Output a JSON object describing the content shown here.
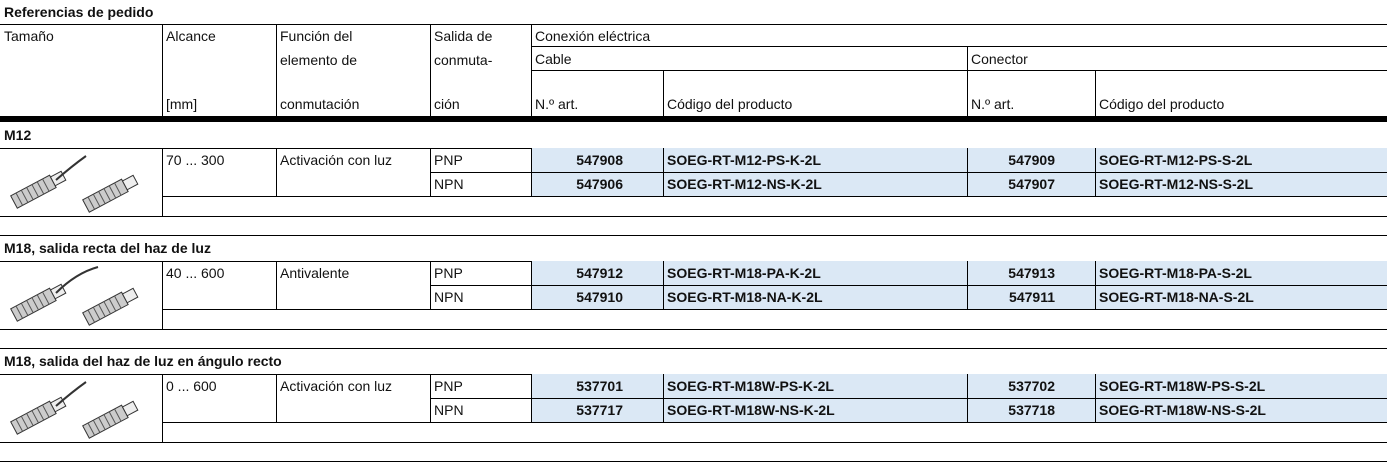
{
  "header": {
    "title": "Referencias de pedido"
  },
  "table": {
    "columns": {
      "size": "Tamaño",
      "range": [
        "Alcance",
        "[mm]"
      ],
      "function": [
        "Función del",
        "elemento de",
        "conmutación"
      ],
      "output": [
        "Salida de",
        "conmuta-",
        "ción"
      ],
      "electrical": "Conexión eléctrica",
      "cable": "Cable",
      "connector": "Conector",
      "cable_columns": [
        "N.º art.",
        "Código del producto"
      ],
      "connector_columns": [
        "N.º art.",
        "Código del producto"
      ]
    },
    "sections": [
      {
        "title": "M12",
        "range": "70 ... 300",
        "function": "Activación con luz",
        "rows": [
          {
            "output": "PNP",
            "cable_part": "547908",
            "cable_code": "SOEG-RT-M12-PS-K-2L",
            "connector_part": "547909",
            "connector_code": "SOEG-RT-M12-PS-S-2L"
          },
          {
            "output": "NPN",
            "cable_part": "547906",
            "cable_code": "SOEG-RT-M12-NS-K-2L",
            "connector_part": "547907",
            "connector_code": "SOEG-RT-M12-NS-S-2L"
          }
        ]
      },
      {
        "title": "M18, salida recta del haz de luz",
        "range": "40 ... 600",
        "function": "Antivalente",
        "rows": [
          {
            "output": "PNP",
            "cable_part": "547912",
            "cable_code": "SOEG-RT-M18-PA-K-2L",
            "connector_part": "547913",
            "connector_code": "SOEG-RT-M18-PA-S-2L"
          },
          {
            "output": "NPN",
            "cable_part": "547910",
            "cable_code": "SOEG-RT-M18-NA-K-2L",
            "connector_part": "547911",
            "connector_code": "SOEG-RT-M18-NA-S-2L"
          }
        ]
      },
      {
        "title": "M18, salida del haz de luz en ángulo recto",
        "range": "0 ... 600",
        "function": "Activación con luz",
        "rows": [
          {
            "output": "PNP",
            "cable_part": "537701",
            "cable_code": "SOEG-RT-M18W-PS-K-2L",
            "connector_part": "537702",
            "connector_code": "SOEG-RT-M18W-PS-S-2L"
          },
          {
            "output": "NPN",
            "cable_part": "537717",
            "cable_code": "SOEG-RT-M18W-NS-K-2L",
            "connector_part": "537718",
            "connector_code": "SOEG-RT-M18W-NS-S-2L"
          }
        ]
      }
    ]
  }
}
